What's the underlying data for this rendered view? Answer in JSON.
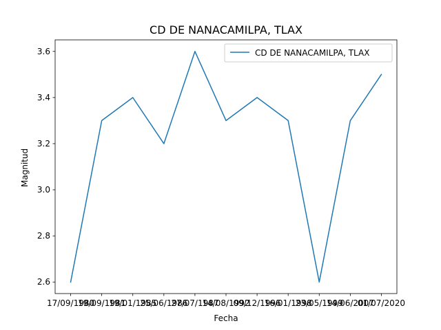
{
  "chart_data": {
    "type": "line",
    "title": "CD DE NANACAMILPA, TLAX",
    "xlabel": "Fecha",
    "ylabel": "Magnitud",
    "categories": [
      "17/09/1980",
      "19/09/1981",
      "19/01/1985",
      "25/06/1986",
      "27/07/1987",
      "14/08/1992",
      "09/12/1996",
      "16/01/1998",
      "23/05/1999",
      "14/06/2007",
      "01/07/2020"
    ],
    "series": [
      {
        "name": "CD DE NANACAMILPA, TLAX",
        "color": "#1f77b4",
        "values": [
          2.6,
          3.3,
          3.4,
          3.2,
          3.6,
          3.3,
          3.4,
          3.3,
          2.6,
          3.3,
          3.5
        ]
      }
    ],
    "ylim": [
      2.55,
      3.65
    ],
    "yticks": [
      "2.6",
      "2.8",
      "3.0",
      "3.2",
      "3.4",
      "3.6"
    ],
    "legend": "top-right",
    "grid": false
  }
}
